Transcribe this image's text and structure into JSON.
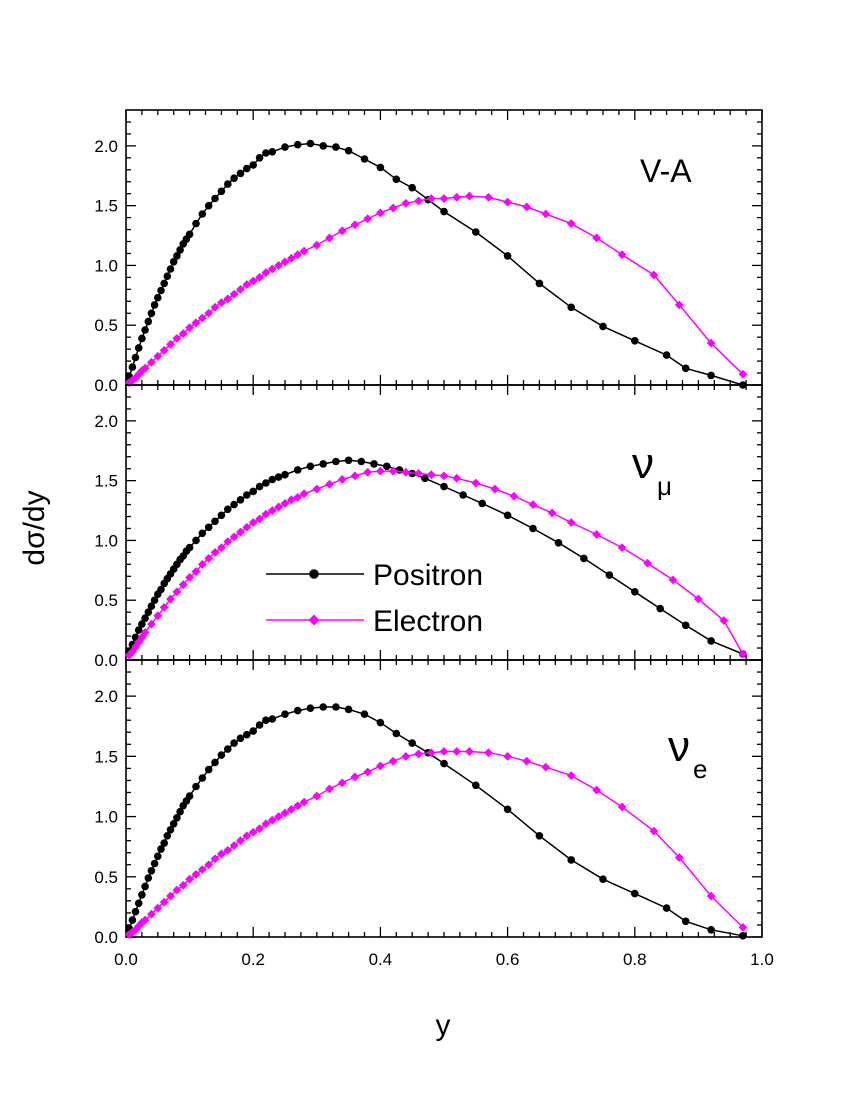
{
  "chart_data": {
    "type": "line",
    "xlabel": "y",
    "ylabel": "dσ/dy",
    "xlim": [
      0.0,
      1.0
    ],
    "ylim": [
      0.0,
      2.3
    ],
    "x_ticks": [
      "0.0",
      "0.2",
      "0.4",
      "0.6",
      "0.8",
      "1.0"
    ],
    "y_ticks": [
      "0.0",
      "0.5",
      "1.0",
      "1.5",
      "2.0"
    ],
    "legend": {
      "placement": "middle-panel-center",
      "entries": [
        "Positron",
        "Electron"
      ]
    },
    "colors": {
      "Positron": "#000000",
      "Electron": "#ff00ff"
    },
    "panels": [
      {
        "label": "V-A",
        "label_sub": "",
        "series": [
          {
            "name": "Positron",
            "marker": "circle",
            "x": [
              0.005,
              0.01,
              0.015,
              0.02,
              0.025,
              0.03,
              0.035,
              0.04,
              0.045,
              0.05,
              0.055,
              0.06,
              0.065,
              0.07,
              0.075,
              0.08,
              0.085,
              0.09,
              0.095,
              0.1,
              0.11,
              0.12,
              0.13,
              0.14,
              0.15,
              0.16,
              0.17,
              0.18,
              0.19,
              0.2,
              0.21,
              0.22,
              0.23,
              0.25,
              0.27,
              0.29,
              0.31,
              0.33,
              0.35,
              0.375,
              0.4,
              0.425,
              0.45,
              0.475,
              0.5,
              0.55,
              0.6,
              0.65,
              0.7,
              0.75,
              0.8,
              0.85,
              0.88,
              0.92,
              0.97
            ],
            "y": [
              0.07,
              0.15,
              0.23,
              0.31,
              0.39,
              0.46,
              0.53,
              0.6,
              0.67,
              0.73,
              0.79,
              0.85,
              0.91,
              0.97,
              1.03,
              1.08,
              1.13,
              1.18,
              1.22,
              1.26,
              1.35,
              1.43,
              1.5,
              1.56,
              1.62,
              1.68,
              1.73,
              1.77,
              1.81,
              1.84,
              1.9,
              1.94,
              1.95,
              1.99,
              2.01,
              2.02,
              2.0,
              1.99,
              1.96,
              1.89,
              1.82,
              1.72,
              1.65,
              1.55,
              1.45,
              1.28,
              1.08,
              0.85,
              0.65,
              0.49,
              0.37,
              0.25,
              0.14,
              0.08,
              0.0
            ]
          },
          {
            "name": "Electron",
            "marker": "diamond",
            "x": [
              0.005,
              0.01,
              0.015,
              0.02,
              0.025,
              0.03,
              0.04,
              0.05,
              0.06,
              0.07,
              0.08,
              0.09,
              0.1,
              0.11,
              0.12,
              0.13,
              0.14,
              0.15,
              0.16,
              0.17,
              0.18,
              0.19,
              0.2,
              0.21,
              0.22,
              0.23,
              0.24,
              0.25,
              0.26,
              0.27,
              0.28,
              0.3,
              0.32,
              0.34,
              0.36,
              0.38,
              0.4,
              0.42,
              0.44,
              0.46,
              0.48,
              0.5,
              0.52,
              0.54,
              0.57,
              0.6,
              0.63,
              0.66,
              0.7,
              0.74,
              0.78,
              0.83,
              0.87,
              0.92,
              0.97
            ],
            "y": [
              0.02,
              0.04,
              0.06,
              0.09,
              0.12,
              0.14,
              0.19,
              0.24,
              0.29,
              0.34,
              0.39,
              0.43,
              0.48,
              0.52,
              0.56,
              0.6,
              0.65,
              0.69,
              0.72,
              0.76,
              0.8,
              0.84,
              0.87,
              0.9,
              0.94,
              0.97,
              1.0,
              1.03,
              1.06,
              1.09,
              1.12,
              1.17,
              1.23,
              1.29,
              1.34,
              1.39,
              1.44,
              1.48,
              1.52,
              1.54,
              1.56,
              1.56,
              1.57,
              1.58,
              1.57,
              1.53,
              1.49,
              1.43,
              1.35,
              1.23,
              1.09,
              0.92,
              0.67,
              0.35,
              0.09
            ]
          }
        ]
      },
      {
        "label": "ν",
        "label_sub": "μ",
        "series": [
          {
            "name": "Positron",
            "marker": "circle",
            "x": [
              0.005,
              0.01,
              0.015,
              0.02,
              0.025,
              0.03,
              0.035,
              0.04,
              0.045,
              0.05,
              0.055,
              0.06,
              0.065,
              0.07,
              0.075,
              0.08,
              0.085,
              0.09,
              0.095,
              0.1,
              0.11,
              0.12,
              0.13,
              0.14,
              0.15,
              0.16,
              0.17,
              0.18,
              0.19,
              0.2,
              0.21,
              0.22,
              0.23,
              0.24,
              0.25,
              0.27,
              0.29,
              0.31,
              0.33,
              0.35,
              0.37,
              0.39,
              0.41,
              0.43,
              0.45,
              0.47,
              0.5,
              0.53,
              0.56,
              0.6,
              0.64,
              0.68,
              0.72,
              0.76,
              0.8,
              0.84,
              0.88,
              0.92,
              0.97
            ],
            "y": [
              0.07,
              0.13,
              0.19,
              0.25,
              0.3,
              0.35,
              0.4,
              0.45,
              0.5,
              0.55,
              0.59,
              0.64,
              0.68,
              0.72,
              0.76,
              0.8,
              0.84,
              0.87,
              0.91,
              0.94,
              1.0,
              1.06,
              1.11,
              1.16,
              1.21,
              1.26,
              1.3,
              1.34,
              1.38,
              1.41,
              1.45,
              1.48,
              1.51,
              1.53,
              1.55,
              1.59,
              1.62,
              1.64,
              1.66,
              1.67,
              1.66,
              1.64,
              1.62,
              1.59,
              1.56,
              1.52,
              1.45,
              1.38,
              1.31,
              1.21,
              1.1,
              0.98,
              0.85,
              0.71,
              0.57,
              0.43,
              0.29,
              0.16,
              0.05
            ]
          },
          {
            "name": "Electron",
            "marker": "diamond",
            "x": [
              0.005,
              0.01,
              0.015,
              0.02,
              0.025,
              0.03,
              0.04,
              0.05,
              0.06,
              0.07,
              0.08,
              0.09,
              0.1,
              0.11,
              0.12,
              0.13,
              0.14,
              0.15,
              0.16,
              0.17,
              0.18,
              0.19,
              0.2,
              0.21,
              0.22,
              0.23,
              0.24,
              0.25,
              0.26,
              0.27,
              0.28,
              0.3,
              0.32,
              0.34,
              0.36,
              0.38,
              0.4,
              0.42,
              0.44,
              0.46,
              0.48,
              0.5,
              0.52,
              0.55,
              0.58,
              0.61,
              0.64,
              0.67,
              0.7,
              0.74,
              0.78,
              0.82,
              0.86,
              0.9,
              0.94,
              0.97
            ],
            "y": [
              0.04,
              0.07,
              0.11,
              0.15,
              0.19,
              0.23,
              0.3,
              0.37,
              0.44,
              0.51,
              0.57,
              0.63,
              0.69,
              0.74,
              0.8,
              0.85,
              0.9,
              0.94,
              0.99,
              1.03,
              1.07,
              1.11,
              1.15,
              1.18,
              1.22,
              1.25,
              1.28,
              1.31,
              1.34,
              1.36,
              1.39,
              1.43,
              1.47,
              1.51,
              1.54,
              1.57,
              1.58,
              1.58,
              1.57,
              1.56,
              1.55,
              1.54,
              1.52,
              1.48,
              1.43,
              1.37,
              1.3,
              1.23,
              1.15,
              1.05,
              0.94,
              0.81,
              0.67,
              0.51,
              0.33,
              0.05
            ]
          }
        ]
      },
      {
        "label": "ν",
        "label_sub": "e",
        "series": [
          {
            "name": "Positron",
            "marker": "circle",
            "x": [
              0.005,
              0.01,
              0.015,
              0.02,
              0.025,
              0.03,
              0.035,
              0.04,
              0.045,
              0.05,
              0.055,
              0.06,
              0.065,
              0.07,
              0.075,
              0.08,
              0.085,
              0.09,
              0.095,
              0.1,
              0.11,
              0.12,
              0.13,
              0.14,
              0.15,
              0.16,
              0.17,
              0.18,
              0.19,
              0.2,
              0.21,
              0.22,
              0.23,
              0.25,
              0.27,
              0.29,
              0.31,
              0.33,
              0.35,
              0.375,
              0.4,
              0.425,
              0.45,
              0.475,
              0.5,
              0.55,
              0.6,
              0.65,
              0.7,
              0.75,
              0.8,
              0.85,
              0.88,
              0.92,
              0.97
            ],
            "y": [
              0.07,
              0.14,
              0.21,
              0.28,
              0.35,
              0.42,
              0.49,
              0.55,
              0.61,
              0.67,
              0.73,
              0.78,
              0.84,
              0.89,
              0.94,
              0.99,
              1.04,
              1.09,
              1.13,
              1.17,
              1.25,
              1.32,
              1.39,
              1.45,
              1.51,
              1.56,
              1.61,
              1.65,
              1.68,
              1.71,
              1.76,
              1.8,
              1.81,
              1.85,
              1.88,
              1.9,
              1.91,
              1.91,
              1.89,
              1.85,
              1.78,
              1.69,
              1.61,
              1.53,
              1.44,
              1.26,
              1.06,
              0.84,
              0.64,
              0.48,
              0.36,
              0.24,
              0.13,
              0.06,
              0.01
            ]
          },
          {
            "name": "Electron",
            "marker": "diamond",
            "x": [
              0.005,
              0.01,
              0.015,
              0.02,
              0.025,
              0.03,
              0.04,
              0.05,
              0.06,
              0.07,
              0.08,
              0.09,
              0.1,
              0.11,
              0.12,
              0.13,
              0.14,
              0.15,
              0.16,
              0.17,
              0.18,
              0.19,
              0.2,
              0.21,
              0.22,
              0.23,
              0.24,
              0.25,
              0.26,
              0.27,
              0.28,
              0.3,
              0.32,
              0.34,
              0.36,
              0.38,
              0.4,
              0.42,
              0.44,
              0.46,
              0.48,
              0.5,
              0.52,
              0.54,
              0.57,
              0.6,
              0.63,
              0.66,
              0.7,
              0.74,
              0.78,
              0.83,
              0.87,
              0.92,
              0.97
            ],
            "y": [
              0.02,
              0.04,
              0.06,
              0.09,
              0.12,
              0.14,
              0.19,
              0.24,
              0.29,
              0.34,
              0.39,
              0.43,
              0.48,
              0.52,
              0.56,
              0.6,
              0.65,
              0.69,
              0.72,
              0.76,
              0.8,
              0.84,
              0.87,
              0.9,
              0.94,
              0.97,
              1.0,
              1.03,
              1.06,
              1.09,
              1.12,
              1.17,
              1.23,
              1.28,
              1.33,
              1.37,
              1.42,
              1.46,
              1.5,
              1.52,
              1.53,
              1.54,
              1.54,
              1.54,
              1.53,
              1.5,
              1.46,
              1.41,
              1.34,
              1.22,
              1.08,
              0.88,
              0.66,
              0.34,
              0.08
            ]
          }
        ]
      }
    ]
  }
}
